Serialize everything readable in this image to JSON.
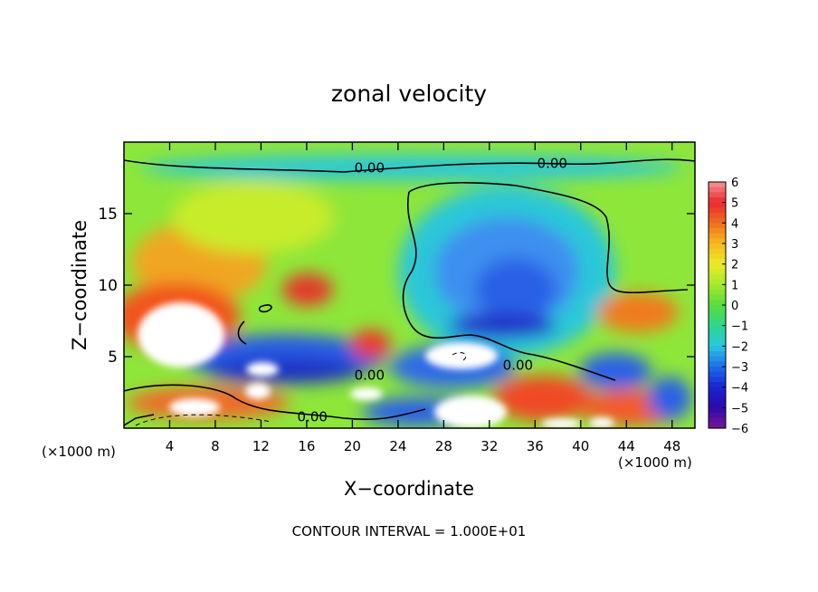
{
  "chart_data": {
    "type": "heatmap",
    "title": "zonal velocity",
    "xlabel": "X−coordinate",
    "ylabel": "Z−coordinate",
    "x_unit_left": "(×1000 m)",
    "x_unit_right": "(×1000 m)",
    "footer": "CONTOUR INTERVAL = 1.000E+01",
    "xlim": [
      0,
      50
    ],
    "ylim": [
      0,
      20
    ],
    "x_ticks": [
      4,
      8,
      12,
      16,
      20,
      24,
      28,
      32,
      36,
      40,
      44,
      48
    ],
    "y_ticks": [
      5,
      10,
      15
    ],
    "x_tick_labels": [
      "4",
      "8",
      "12",
      "16",
      "20",
      "24",
      "28",
      "32",
      "36",
      "40",
      "44",
      "48"
    ],
    "y_tick_labels": [
      "5",
      "10",
      "15"
    ],
    "colorbar": {
      "min": -6,
      "max": 6,
      "tick_labels": [
        "6",
        "5",
        "4",
        "3",
        "2",
        "1",
        "0",
        "−1",
        "−2",
        "−3",
        "−4",
        "−5",
        "−6"
      ],
      "tick_values": [
        6,
        5,
        4,
        3,
        2,
        1,
        0,
        -1,
        -2,
        -3,
        -4,
        -5,
        -6
      ]
    },
    "contour_labels": [
      {
        "text": "0.00",
        "x": 21.5,
        "y": 18.2
      },
      {
        "text": "0.00",
        "x": 37.5,
        "y": 18.5
      },
      {
        "text": "0.00",
        "x": 21.5,
        "y": 3.7
      },
      {
        "text": "0.00",
        "x": 34.5,
        "y": 4.4
      },
      {
        "text": "0.00",
        "x": 16.5,
        "y": 0.8
      }
    ],
    "grid": false,
    "legend": "right"
  }
}
